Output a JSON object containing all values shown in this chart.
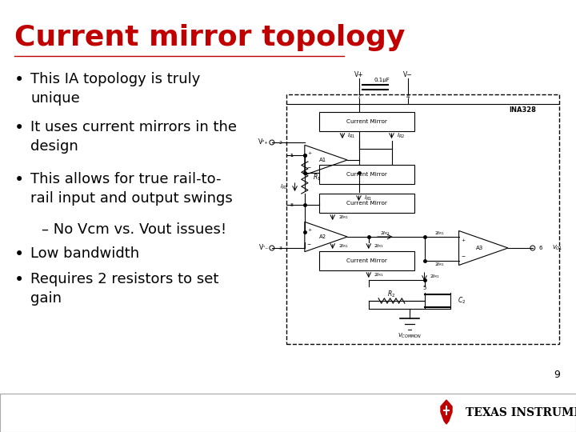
{
  "title": "Current mirror topology",
  "title_color": "#C00000",
  "title_fontsize": 26,
  "bg_color": "#FFFFFF",
  "bullet_color": "#000000",
  "bullet_fontsize": 13,
  "bullets": [
    "This IA topology is truly\nunique",
    "It uses current mirrors in the\ndesign",
    "This allows for true rail-to-\nrail input and output swings"
  ],
  "sub_bullet": "– No Vcm vs. Vout issues!",
  "extra_bullets": [
    "Low bandwidth",
    "Requires 2 resistors to set\ngain"
  ],
  "footer_text": "TEXAS INSTRUMENTS",
  "page_number": "9"
}
